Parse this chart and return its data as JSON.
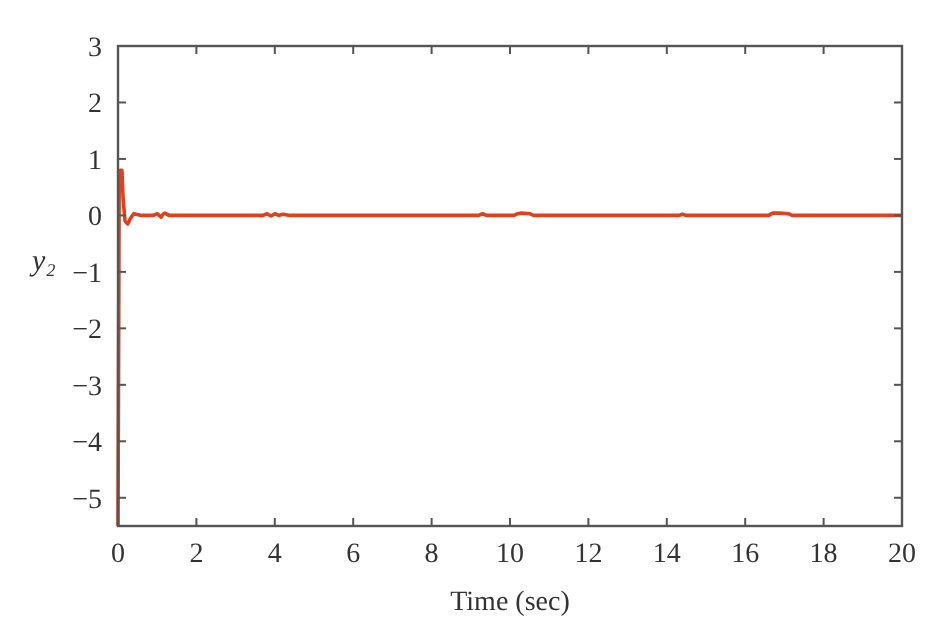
{
  "chart_data": {
    "type": "line",
    "xlabel": "Time (sec)",
    "ylabel": "y₂",
    "xlim": [
      0,
      20
    ],
    "ylim": [
      -5.5,
      3
    ],
    "xticks": [
      0,
      2,
      4,
      6,
      8,
      10,
      12,
      14,
      16,
      18,
      20
    ],
    "yticks": [
      -5,
      -4,
      -3,
      -2,
      -1,
      0,
      1,
      2,
      3
    ],
    "grid": false,
    "line_style": "solid",
    "series": [
      {
        "color": "#e2401c",
        "x": [
          0,
          0.03,
          0.06,
          0.1,
          0.13,
          0.18,
          0.25,
          0.32,
          0.4,
          0.6,
          0.9,
          1.0,
          1.05,
          1.1,
          1.15,
          1.2,
          1.3,
          1.5,
          3.7,
          3.8,
          3.9,
          4.0,
          4.1,
          4.2,
          4.4,
          9.2,
          9.3,
          9.4,
          10.1,
          10.2,
          10.3,
          10.5,
          10.6,
          14.3,
          14.4,
          14.5,
          16.6,
          16.7,
          16.9,
          17.1,
          17.2,
          20
        ],
        "values": [
          -5.5,
          0.5,
          0.8,
          0.8,
          0.3,
          -0.1,
          -0.15,
          -0.05,
          0.03,
          0,
          0,
          0.03,
          0,
          -0.03,
          0.02,
          0.04,
          0,
          0,
          0,
          0.03,
          -0.01,
          0.03,
          0,
          0.02,
          0,
          0,
          0.03,
          0,
          0,
          0.03,
          0.04,
          0.03,
          0,
          0,
          0.02,
          0,
          0,
          0.04,
          0.04,
          0.03,
          0,
          0
        ]
      }
    ]
  }
}
